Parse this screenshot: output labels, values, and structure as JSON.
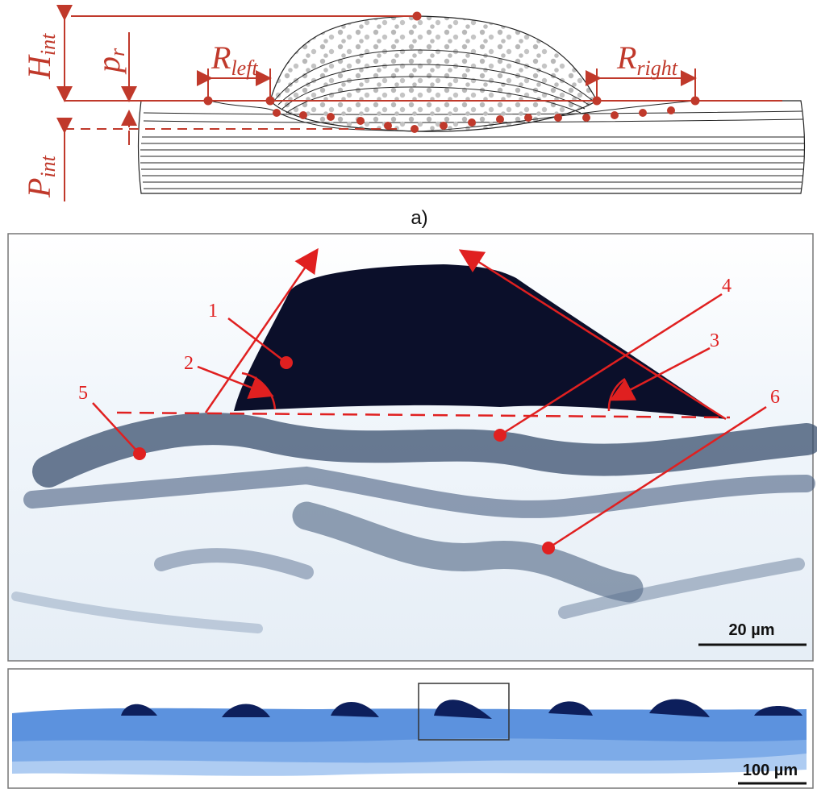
{
  "diagram": {
    "labels": {
      "h_int": {
        "main": "H",
        "sub": "int"
      },
      "p_r": {
        "main": "p",
        "sub": "r"
      },
      "r_left": {
        "main": "R",
        "sub": "left"
      },
      "r_right": {
        "main": "R",
        "sub": "right"
      },
      "p_int": {
        "main": "P",
        "sub": "int"
      }
    },
    "caption": "a)"
  },
  "micrograph": {
    "callouts": [
      "1",
      "2",
      "3",
      "4",
      "5",
      "6"
    ],
    "scale_bar": "20 µm"
  },
  "overview": {
    "scale_bar": "100 µm"
  }
}
